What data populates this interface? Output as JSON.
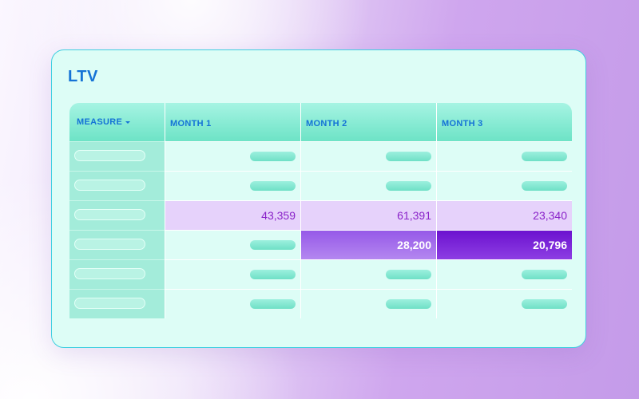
{
  "card": {
    "title": "LTV"
  },
  "table": {
    "headers": [
      "MEASURE",
      "MONTH 1",
      "MONTH 2",
      "MONTH 3"
    ],
    "row3": {
      "values": [
        "43,359",
        "61,391",
        "23,340"
      ]
    },
    "row4": {
      "values": [
        "28,200",
        "20,796"
      ]
    }
  },
  "colors": {
    "accent_blue": "#1573d6",
    "highlight_lavender": "#e6d2fb",
    "highlight_purple": "#9659e8",
    "highlight_deep_purple": "#6c12cf",
    "teal_header": "#6de3c6",
    "card_background": "#ddfdf6"
  },
  "icons": {
    "measure_dropdown": "caret-down-icon"
  }
}
